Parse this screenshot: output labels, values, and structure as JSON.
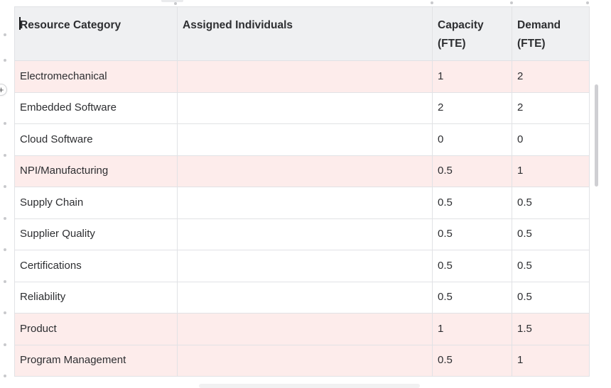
{
  "table": {
    "columns": [
      {
        "label": "Resource Category"
      },
      {
        "label": "Assigned Individuals"
      },
      {
        "label": "Capacity (FTE)"
      },
      {
        "label": "Demand (FTE)"
      }
    ],
    "rows": [
      {
        "category": "Electromechanical",
        "assigned": "",
        "capacity": "1",
        "demand": "2",
        "highlighted": true
      },
      {
        "category": "Embedded Software",
        "assigned": "",
        "capacity": "2",
        "demand": "2",
        "highlighted": false
      },
      {
        "category": "Cloud Software",
        "assigned": "",
        "capacity": "0",
        "demand": "0",
        "highlighted": false
      },
      {
        "category": "NPI/Manufacturing",
        "assigned": "",
        "capacity": "0.5",
        "demand": "1",
        "highlighted": true
      },
      {
        "category": "Supply Chain",
        "assigned": "",
        "capacity": "0.5",
        "demand": "0.5",
        "highlighted": false
      },
      {
        "category": "Supplier Quality",
        "assigned": "",
        "capacity": "0.5",
        "demand": "0.5",
        "highlighted": false
      },
      {
        "category": "Certifications",
        "assigned": "",
        "capacity": "0.5",
        "demand": "0.5",
        "highlighted": false
      },
      {
        "category": "Reliability",
        "assigned": "",
        "capacity": "0.5",
        "demand": "0.5",
        "highlighted": false
      },
      {
        "category": "Product",
        "assigned": "",
        "capacity": "1",
        "demand": "1.5",
        "highlighted": true
      },
      {
        "category": "Program Management",
        "assigned": "",
        "capacity": "0.5",
        "demand": "1",
        "highlighted": true
      }
    ]
  },
  "controls": {
    "add_row_label": "+"
  },
  "colors": {
    "highlight_row": "#fdeceb",
    "header_bg": "#eff0f2",
    "border": "#e1e2e5",
    "text": "#2d2e31",
    "handle_dot": "#c8c9cc"
  }
}
